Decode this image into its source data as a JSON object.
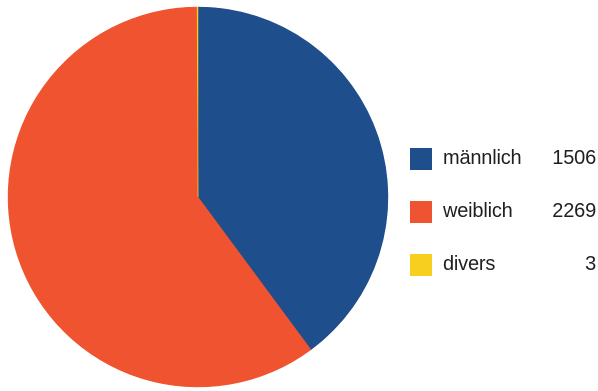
{
  "chart_data": {
    "type": "pie",
    "title": "",
    "start_angle_deg": 0,
    "direction": "clockwise",
    "legend_position": "right",
    "slices": [
      {
        "label": "männlich",
        "value": 1506,
        "value_label": "1506",
        "color": "#1f4e8c"
      },
      {
        "label": "weiblich",
        "value": 2269,
        "value_label": "2269",
        "color": "#f0532f"
      },
      {
        "label": "divers",
        "value": 3,
        "value_label": "3",
        "color": "#f7d01f"
      }
    ]
  }
}
